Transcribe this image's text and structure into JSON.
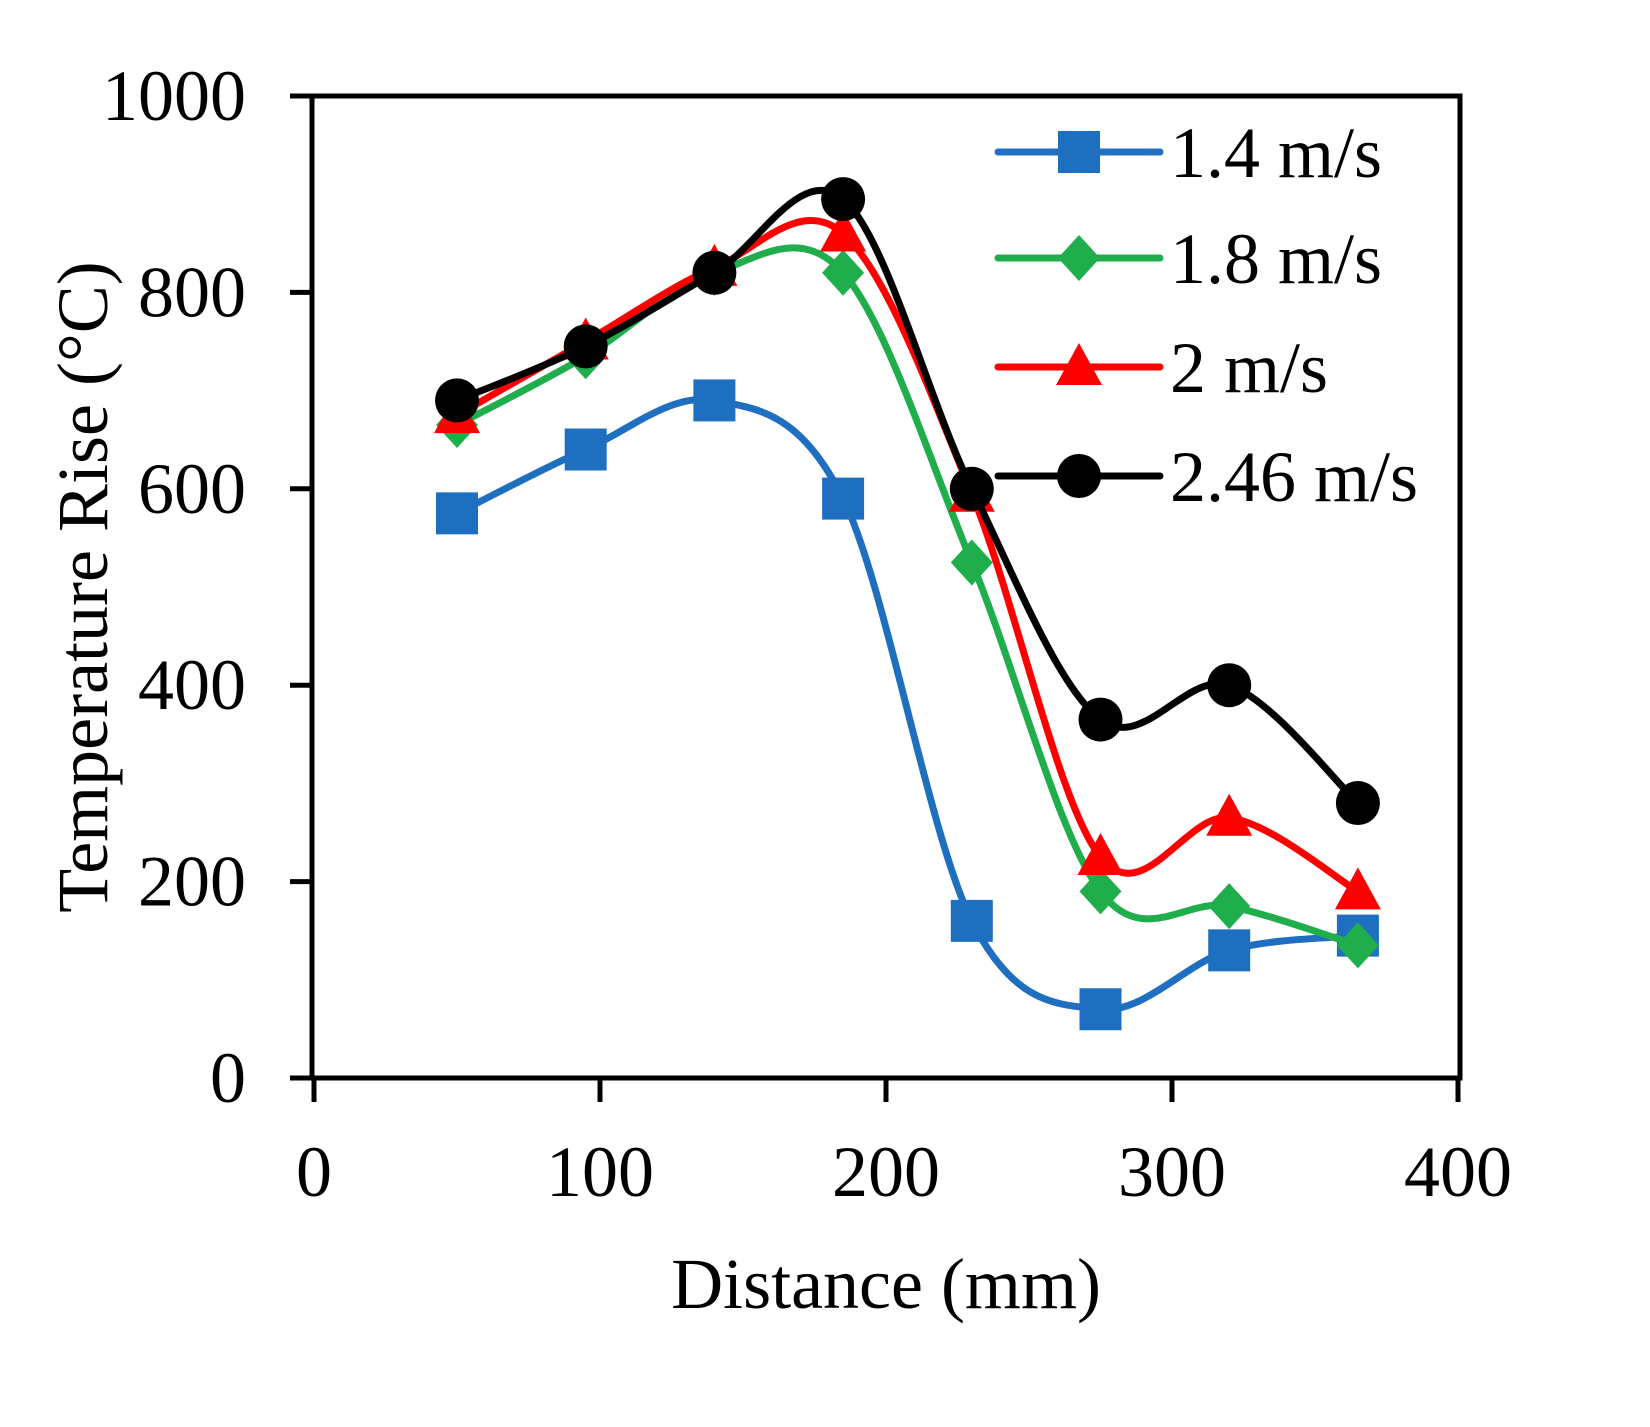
{
  "chart_data": {
    "type": "line",
    "title": "",
    "xlabel": "Distance (mm)",
    "ylabel": "Temperature Rise (°C)",
    "xlim": [
      0,
      400
    ],
    "ylim": [
      0,
      1000
    ],
    "xticks": [
      0,
      100,
      200,
      300,
      400
    ],
    "yticks": [
      0,
      200,
      400,
      600,
      800,
      1000
    ],
    "grid": false,
    "legend_position": "top-right",
    "x": [
      50,
      95,
      140,
      185,
      230,
      275,
      320,
      365
    ],
    "series": [
      {
        "name": "1.4 m/s",
        "color": "#1f6fc1",
        "marker": "square",
        "values": [
          575,
          640,
          690,
          590,
          160,
          70,
          130,
          145
        ]
      },
      {
        "name": "1.8 m/s",
        "color": "#1fae4b",
        "marker": "diamond",
        "values": [
          665,
          735,
          820,
          820,
          525,
          190,
          175,
          135
        ]
      },
      {
        "name": "2 m/s",
        "color": "#ff0000",
        "marker": "triangle",
        "values": [
          675,
          750,
          825,
          860,
          595,
          225,
          265,
          190
        ]
      },
      {
        "name": "2.46 m/s",
        "color": "#000000",
        "marker": "circle",
        "values": [
          690,
          745,
          820,
          895,
          600,
          365,
          400,
          280
        ]
      }
    ]
  }
}
